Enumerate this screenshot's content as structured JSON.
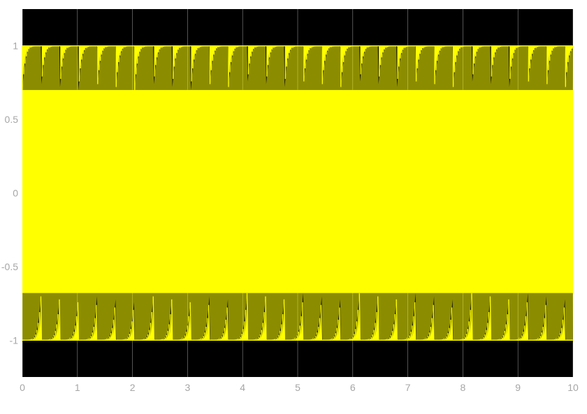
{
  "chart_data": {
    "type": "line",
    "title": "",
    "xlabel": "",
    "ylabel": "",
    "xlim": [
      0,
      10
    ],
    "ylim": [
      -1.25,
      1.25
    ],
    "x_ticks": [
      0,
      1,
      2,
      3,
      4,
      5,
      6,
      7,
      8,
      9,
      10
    ],
    "x_tick_labels": [
      "0",
      "1",
      "2",
      "3",
      "4",
      "5",
      "6",
      "7",
      "8",
      "9",
      "10"
    ],
    "y_ticks": [
      1,
      0.5,
      0,
      -0.5,
      -1
    ],
    "y_tick_labels": [
      "1",
      "0.5",
      "0",
      "-0.5",
      "-1"
    ],
    "grid": true,
    "legend": "none",
    "series": [
      {
        "color": "#ffff00",
        "amplitude": 1.0,
        "description_values": {
          "upper_envelope": 1.0,
          "upper_dip_min": 0.7,
          "lower_envelope": -1.0,
          "lower_peak_max": -0.68,
          "dip_period": 0.34
        }
      }
    ],
    "colors": {
      "plot_background": "#000000",
      "grid": "#ffffff",
      "figure_background": "#ffffff",
      "tick_text": "#a6a6a6"
    }
  }
}
